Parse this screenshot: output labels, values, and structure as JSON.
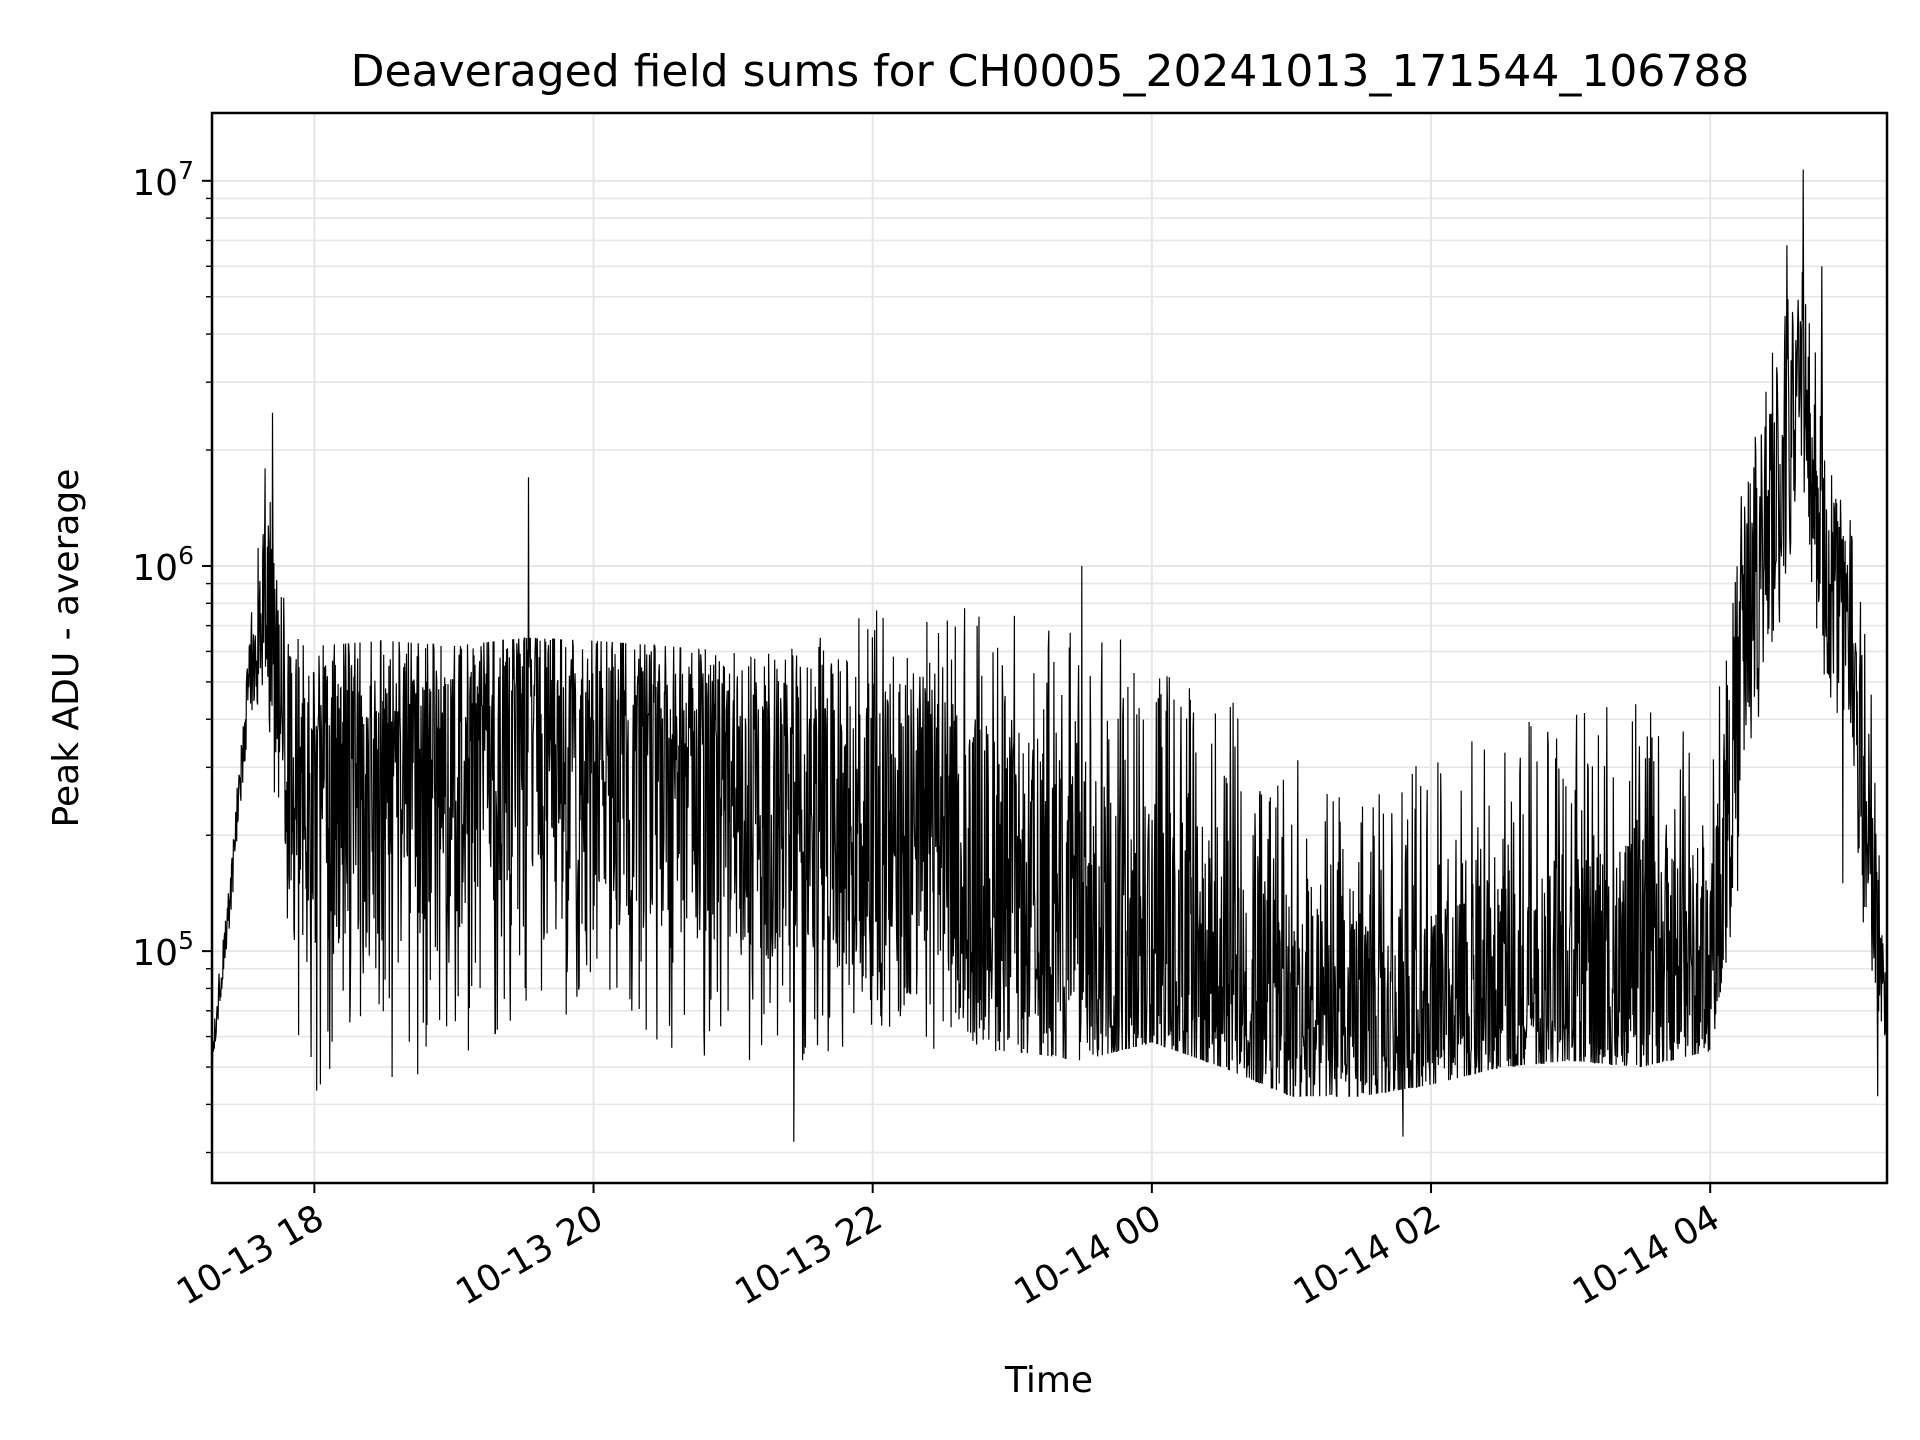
{
  "chart_data": {
    "type": "line",
    "title": "Deaveraged field sums for CH0005_20241013_171544_106788",
    "xlabel": "Time",
    "ylabel": "Peak ADU - average",
    "yscale": "log",
    "ylim": [
      25000,
      15000000
    ],
    "xlim": [
      "2024-10-13 17:16",
      "2024-10-14 05:16"
    ],
    "grid": true,
    "line_color": "#000000",
    "grid_color": "#e6e6e6",
    "x_ticks": [
      {
        "time": "2024-10-13 18:00",
        "label": "10-13 18"
      },
      {
        "time": "2024-10-13 20:00",
        "label": "10-13 20"
      },
      {
        "time": "2024-10-13 22:00",
        "label": "10-13 22"
      },
      {
        "time": "2024-10-14 00:00",
        "label": "10-14 00"
      },
      {
        "time": "2024-10-14 02:00",
        "label": "10-14 02"
      },
      {
        "time": "2024-10-14 04:00",
        "label": "10-14 04"
      }
    ],
    "y_ticks": [
      {
        "value": 100000,
        "base": "10",
        "exp": "5"
      },
      {
        "value": 1000000,
        "base": "10",
        "exp": "6"
      },
      {
        "value": 10000000,
        "base": "10",
        "exp": "7"
      }
    ],
    "series": [
      {
        "name": "",
        "envelope": [
          {
            "t": "2024-10-13 17:16",
            "low": 50000,
            "mid": 50000,
            "high": 60000
          },
          {
            "t": "2024-10-13 17:24",
            "low": 120000,
            "mid": 140000,
            "high": 170000
          },
          {
            "t": "2024-10-13 17:32",
            "low": 350000,
            "mid": 500000,
            "high": 650000
          },
          {
            "t": "2024-10-13 17:39",
            "low": 500000,
            "mid": 800000,
            "high": 2100000
          },
          {
            "t": "2024-10-13 17:45",
            "low": 150000,
            "mid": 450000,
            "high": 900000
          },
          {
            "t": "2024-10-13 17:52",
            "low": 60000,
            "mid": 300000,
            "high": 650000
          },
          {
            "t": "2024-10-13 18:00",
            "low": 42000,
            "mid": 250000,
            "high": 620000
          },
          {
            "t": "2024-10-13 18:30",
            "low": 45000,
            "mid": 270000,
            "high": 640000
          },
          {
            "t": "2024-10-13 19:00",
            "low": 48000,
            "mid": 310000,
            "high": 620000
          },
          {
            "t": "2024-10-13 19:30",
            "low": 60000,
            "mid": 370000,
            "high": 650000
          },
          {
            "t": "2024-10-13 20:00",
            "low": 70000,
            "mid": 330000,
            "high": 640000
          },
          {
            "t": "2024-10-13 20:30",
            "low": 55000,
            "mid": 280000,
            "high": 620000
          },
          {
            "t": "2024-10-13 21:00",
            "low": 50000,
            "mid": 250000,
            "high": 600000
          },
          {
            "t": "2024-10-13 21:30",
            "low": 52000,
            "mid": 230000,
            "high": 620000
          },
          {
            "t": "2024-10-13 22:00",
            "low": 60000,
            "mid": 200000,
            "high": 800000
          },
          {
            "t": "2024-10-13 22:30",
            "low": 55000,
            "mid": 170000,
            "high": 780000
          },
          {
            "t": "2024-10-13 23:00",
            "low": 55000,
            "mid": 140000,
            "high": 800000
          },
          {
            "t": "2024-10-13 23:30",
            "low": 52000,
            "mid": 110000,
            "high": 700000
          },
          {
            "t": "2024-10-14 00:00",
            "low": 58000,
            "mid": 100000,
            "high": 650000
          },
          {
            "t": "2024-10-14 00:30",
            "low": 50000,
            "mid": 90000,
            "high": 500000
          },
          {
            "t": "2024-10-14 01:00",
            "low": 42000,
            "mid": 65000,
            "high": 330000
          },
          {
            "t": "2024-10-14 01:30",
            "low": 42000,
            "mid": 60000,
            "high": 250000
          },
          {
            "t": "2024-10-14 02:00",
            "low": 45000,
            "mid": 65000,
            "high": 320000
          },
          {
            "t": "2024-10-14 02:30",
            "low": 50000,
            "mid": 75000,
            "high": 380000
          },
          {
            "t": "2024-10-14 03:00",
            "low": 52000,
            "mid": 80000,
            "high": 420000
          },
          {
            "t": "2024-10-14 03:30",
            "low": 50000,
            "mid": 85000,
            "high": 450000
          },
          {
            "t": "2024-10-14 04:00",
            "low": 55000,
            "mid": 90000,
            "high": 350000
          },
          {
            "t": "2024-10-14 04:15",
            "low": 150000,
            "mid": 700000,
            "high": 2000000
          },
          {
            "t": "2024-10-14 04:30",
            "low": 700000,
            "mid": 1800000,
            "high": 4500000
          },
          {
            "t": "2024-10-14 04:40",
            "low": 1200000,
            "mid": 2800000,
            "high": 6000000
          },
          {
            "t": "2024-10-14 04:50",
            "low": 450000,
            "mid": 1000000,
            "high": 3000000
          },
          {
            "t": "2024-10-14 05:00",
            "low": 300000,
            "mid": 650000,
            "high": 1400000
          },
          {
            "t": "2024-10-14 05:08",
            "low": 80000,
            "mid": 150000,
            "high": 700000
          },
          {
            "t": "2024-10-14 05:16",
            "low": 55000,
            "mid": 70000,
            "high": 90000
          }
        ],
        "peaks": [
          {
            "t": "2024-10-13 17:42",
            "value": 2500000
          },
          {
            "t": "2024-10-13 19:32",
            "value": 1700000
          },
          {
            "t": "2024-10-13 21:26",
            "value": 32000
          },
          {
            "t": "2024-10-13 23:30",
            "value": 1000000
          },
          {
            "t": "2024-10-14 01:48",
            "value": 33000
          },
          {
            "t": "2024-10-14 04:33",
            "value": 6800000
          },
          {
            "t": "2024-10-14 04:40",
            "value": 10700000
          },
          {
            "t": "2024-10-14 04:48",
            "value": 6000000
          },
          {
            "t": "2024-10-14 04:57",
            "value": 150000
          },
          {
            "t": "2024-10-14 05:12",
            "value": 42000
          }
        ]
      }
    ]
  }
}
